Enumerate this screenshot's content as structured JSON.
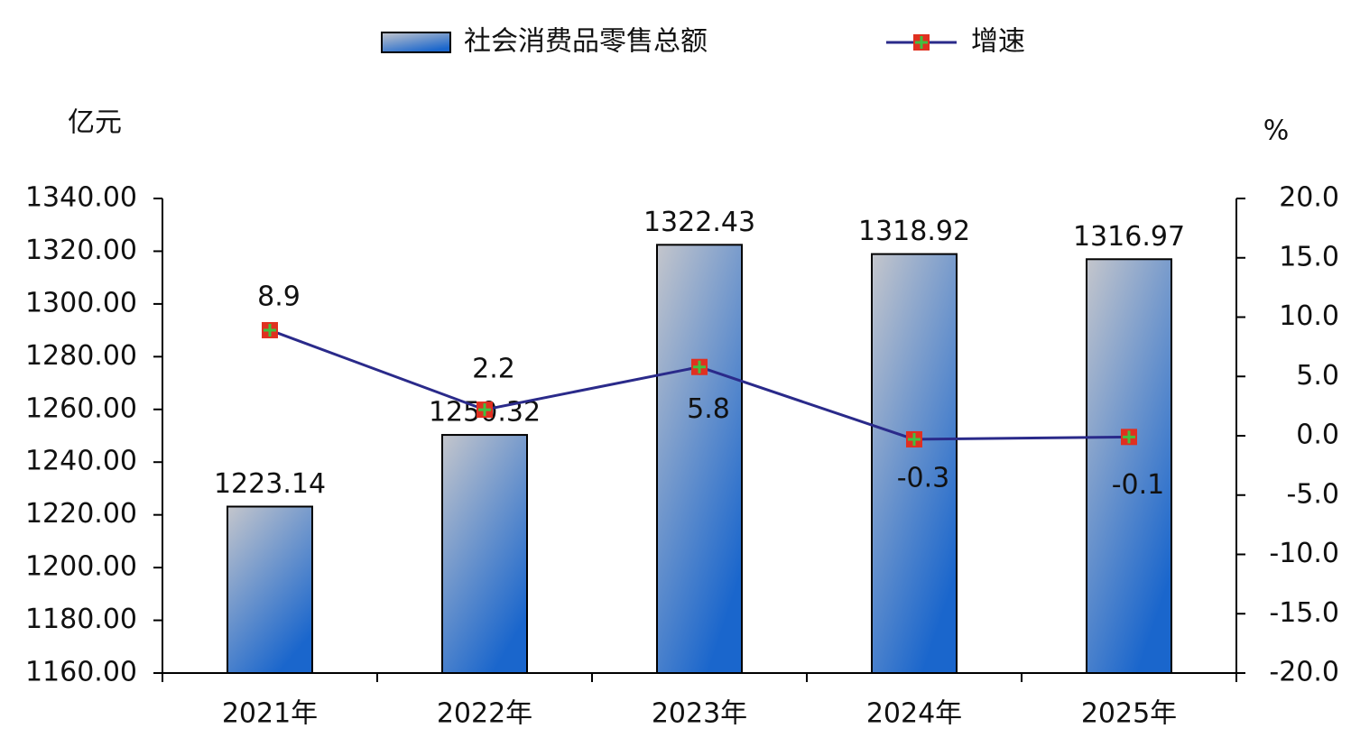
{
  "chart_data": {
    "type": "bar_line",
    "categories": [
      "2021年",
      "2022年",
      "2023年",
      "2024年",
      "2025年"
    ],
    "series": [
      {
        "name": "社会消费品零售总额",
        "type": "bar",
        "color": "#1a66cc",
        "values": [
          1223.14,
          1250.32,
          1322.43,
          1318.92,
          1316.97
        ]
      },
      {
        "name": "增速",
        "type": "line",
        "axis": "y2",
        "color": "#2a2a8a",
        "values": [
          8.9,
          2.2,
          5.8,
          -0.3,
          -0.1
        ]
      }
    ],
    "y_label": "亿元",
    "y2_label": "%",
    "ylim": [
      1160,
      1340
    ],
    "yticks": [
      {
        "value": 1160,
        "label": "1160.00"
      },
      {
        "value": 1180,
        "label": "1180.00"
      },
      {
        "value": 1200,
        "label": "1200.00"
      },
      {
        "value": 1220,
        "label": "1220.00"
      },
      {
        "value": 1240,
        "label": "1240.00"
      },
      {
        "value": 1260,
        "label": "1260.00"
      },
      {
        "value": 1280,
        "label": "1280.00"
      },
      {
        "value": 1300,
        "label": "1300.00"
      },
      {
        "value": 1320,
        "label": "1320.00"
      },
      {
        "value": 1340,
        "label": "1340.00"
      }
    ],
    "y2lim": [
      -20,
      20
    ],
    "y2ticks": [
      {
        "value": -20,
        "label": "-20.0"
      },
      {
        "value": -15,
        "label": "-15.0"
      },
      {
        "value": -10,
        "label": "-10.0"
      },
      {
        "value": -5,
        "label": "-5.0"
      },
      {
        "value": 0,
        "label": "0.0"
      },
      {
        "value": 5,
        "label": "5.0"
      },
      {
        "value": 10,
        "label": "10.0"
      },
      {
        "value": 15,
        "label": "15.0"
      },
      {
        "value": 20,
        "label": "20.0"
      }
    ],
    "legend": "top"
  }
}
